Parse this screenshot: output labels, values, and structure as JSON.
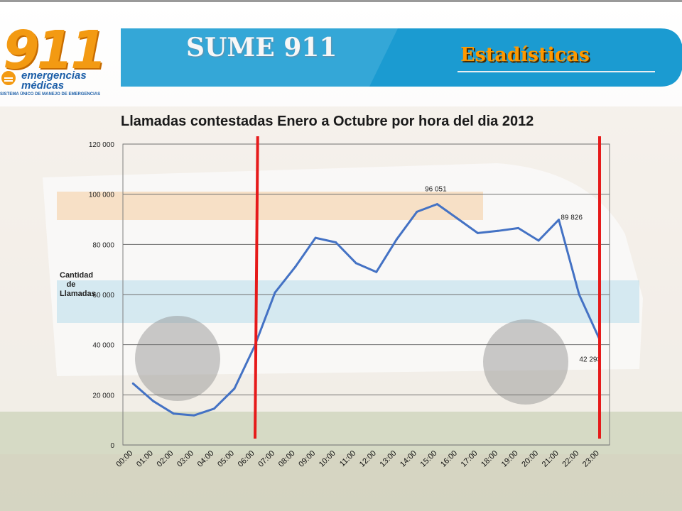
{
  "header": {
    "logo": {
      "number": "911",
      "line1": "emergencias",
      "line2": "médicas",
      "subtitle": "SISTEMA ÚNICO DE MANEJO DE EMERGENCIAS"
    },
    "title": "SUME 911",
    "section": "Estadísticas"
  },
  "colors": {
    "header_band": "#1b9bd1",
    "line": "#4472c4",
    "marker_lines": "#e61a1a",
    "section_title": "#ff9900"
  },
  "markers": {
    "lines_at_hours": [
      "06:00",
      "23:00"
    ]
  },
  "chart_data": {
    "type": "line",
    "title": "Llamadas contestadas Enero a Octubre por hora del dia 2012",
    "xlabel": "",
    "ylabel": "Cantidad de Llamadas",
    "ylim": [
      0,
      120000
    ],
    "yticks": [
      "0",
      "20 000",
      "40 000",
      "60 000",
      "80 000",
      "100 000",
      "120 000"
    ],
    "grid": true,
    "categories": [
      "00:00",
      "01:00",
      "02:00",
      "03:00",
      "04:00",
      "05:00",
      "06:00",
      "07:00",
      "08:00",
      "09:00",
      "10:00",
      "11:00",
      "12:00",
      "13:00",
      "14:00",
      "15:00",
      "16:00",
      "17:00",
      "18:00",
      "19:00",
      "20:00",
      "21:00",
      "22:00",
      "23:00"
    ],
    "series": [
      {
        "values": [
          24500,
          17500,
          12500,
          11800,
          14500,
          22500,
          39500,
          60800,
          71000,
          82600,
          80800,
          72500,
          69000,
          82000,
          93000,
          96051,
          90300,
          84500,
          85400,
          86500,
          81500,
          89826,
          60000,
          42293
        ]
      }
    ],
    "data_labels": [
      {
        "index": 15,
        "text": "96 051"
      },
      {
        "index": 21,
        "text": "89 826"
      },
      {
        "index": 23,
        "text": "42 293"
      }
    ]
  }
}
